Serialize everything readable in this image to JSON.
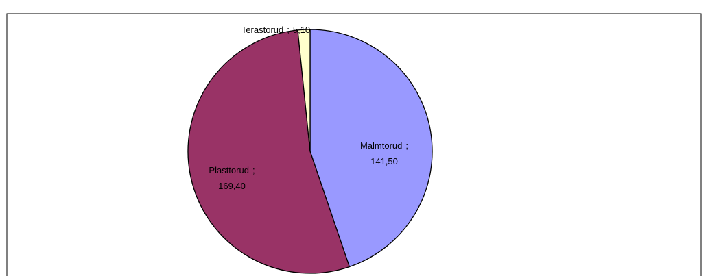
{
  "chart_data": {
    "type": "pie",
    "categories": [
      "Malmtorud",
      "Plasttorud",
      "Terastorud"
    ],
    "values": [
      141.5,
      169.4,
      5.1
    ],
    "value_labels": [
      "141,50",
      "169,40",
      "5,10"
    ],
    "label_separator": ";",
    "colors": [
      "#9999ff",
      "#993366",
      "#ffffcc"
    ]
  }
}
